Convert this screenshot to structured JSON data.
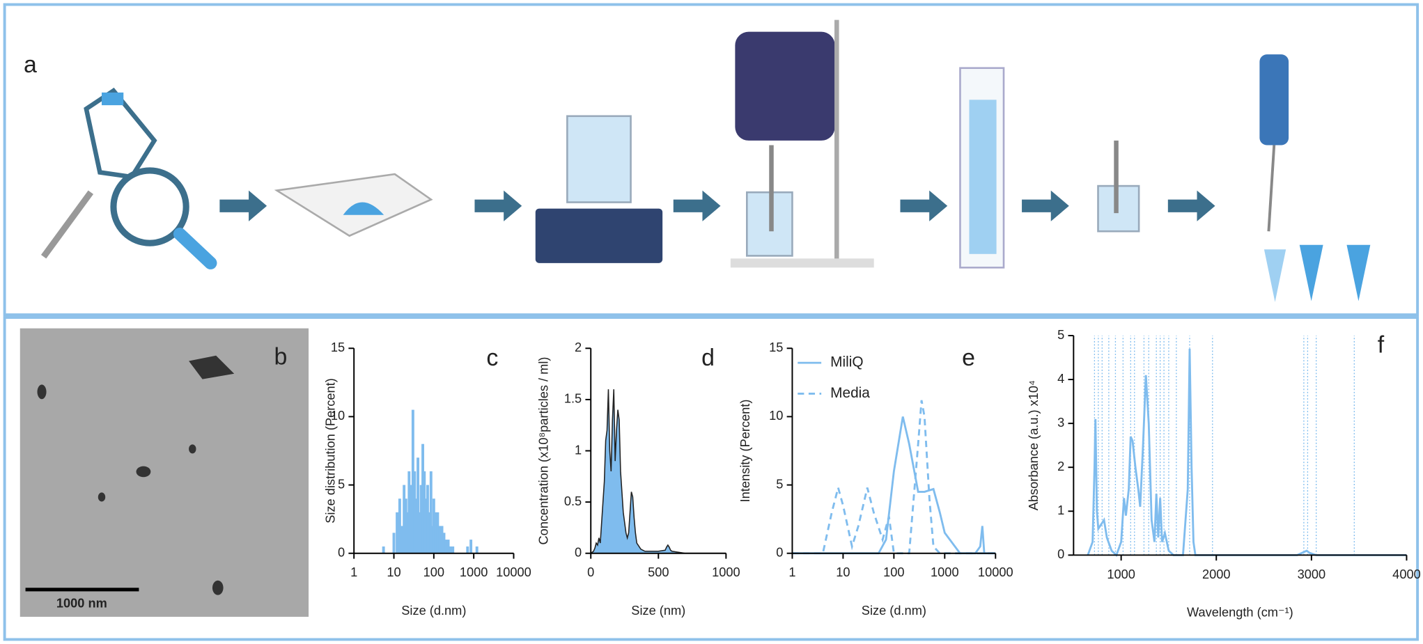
{
  "figure": {
    "panel_a": "a",
    "panel_b": "b",
    "scale_bar": "1000 nm"
  },
  "chart_data": [
    {
      "type": "bar",
      "panel": "c",
      "xscale": "log",
      "xlabel": "Size (d.nm)",
      "ylabel": "Size distribution (Percent)",
      "color": "#7fbcee",
      "xlim": [
        1,
        10000
      ],
      "xticks": [
        1,
        10,
        100,
        1000,
        10000
      ],
      "ylim": [
        0,
        15
      ],
      "yticks": [
        0,
        5,
        10,
        15
      ],
      "series": [
        {
          "x": [
            5.5,
            10,
            12,
            14,
            16,
            18,
            20,
            22,
            24,
            27,
            30,
            33,
            36,
            40,
            44,
            48,
            53,
            58,
            64,
            70,
            77,
            85,
            93,
            100,
            110,
            125,
            140,
            160,
            180,
            200,
            230,
            260,
            300,
            700,
            850,
            1200
          ],
          "values": [
            0.5,
            1.5,
            3,
            4,
            2,
            5,
            4,
            3,
            6,
            5,
            10.5,
            6,
            4,
            7,
            3,
            5,
            8,
            6,
            4,
            5,
            3,
            6,
            2,
            4,
            3,
            3,
            2,
            2,
            1.5,
            1,
            1,
            0.5,
            0.5,
            0.5,
            1,
            0.5
          ]
        }
      ]
    },
    {
      "type": "area",
      "panel": "d",
      "xlabel": "Size (nm)",
      "ylabel": "Concentration (x10⁸particles / ml)",
      "color": "#222222",
      "fill": "#7fbcee",
      "xlim": [
        0,
        1000
      ],
      "xticks": [
        0,
        500,
        1000
      ],
      "ylim": [
        0,
        2
      ],
      "yticks": [
        0,
        0.5,
        1,
        1.5,
        2
      ],
      "series": [
        {
          "x": [
            0,
            20,
            30,
            40,
            50,
            60,
            70,
            80,
            90,
            100,
            110,
            120,
            130,
            140,
            150,
            160,
            170,
            180,
            190,
            200,
            210,
            220,
            230,
            240,
            250,
            260,
            270,
            280,
            290,
            300,
            310,
            320,
            330,
            340,
            350,
            370,
            400,
            450,
            500,
            550,
            560,
            570,
            580,
            590,
            600,
            650,
            700,
            800,
            1000
          ],
          "values": [
            0,
            0.02,
            0.05,
            0.1,
            0.08,
            0.15,
            0.1,
            0.3,
            0.5,
            0.7,
            1.1,
            1.2,
            1.6,
            1.0,
            0.8,
            1.3,
            1.6,
            0.9,
            1.2,
            1.4,
            1.3,
            0.8,
            0.6,
            0.4,
            0.3,
            0.2,
            0.15,
            0.2,
            0.4,
            0.6,
            0.55,
            0.35,
            0.2,
            0.1,
            0.08,
            0.04,
            0.02,
            0.02,
            0.02,
            0.03,
            0.06,
            0.08,
            0.06,
            0.03,
            0.02,
            0.01,
            0,
            0,
            0
          ]
        }
      ]
    },
    {
      "type": "line",
      "panel": "e",
      "xscale": "log",
      "xlabel": "Size (d.nm)",
      "ylabel": "Intensity (Percent)",
      "legend": "upper left",
      "xlim": [
        1,
        10000
      ],
      "xticks": [
        1,
        10,
        100,
        1000,
        10000
      ],
      "ylim": [
        0,
        15
      ],
      "yticks": [
        0,
        5,
        10,
        15
      ],
      "series": [
        {
          "name": "MiliQ",
          "color": "#7fbcee",
          "dash": false,
          "x": [
            1,
            10,
            50,
            70,
            100,
            150,
            200,
            300,
            400,
            600,
            800,
            1000,
            2000,
            4000,
            5000,
            5500,
            6000,
            8000,
            10000
          ],
          "values": [
            0,
            0,
            0,
            1,
            6,
            10,
            8,
            4.5,
            4.5,
            4.7,
            3,
            1.5,
            0,
            0,
            0.5,
            2,
            0,
            0,
            0
          ]
        },
        {
          "name": "Media",
          "color": "#7fbcee",
          "dash": true,
          "x": [
            1,
            4,
            6,
            8,
            10,
            15,
            20,
            30,
            40,
            60,
            80,
            100,
            200,
            300,
            350,
            400,
            500,
            600,
            800,
            1000,
            10000
          ],
          "values": [
            0,
            0,
            3,
            4.8,
            3.5,
            0.5,
            2,
            4.8,
            3,
            1,
            2.7,
            0,
            0,
            8,
            11.2,
            10,
            4,
            0.5,
            0,
            0,
            0
          ]
        }
      ]
    },
    {
      "type": "line",
      "panel": "f",
      "xlabel": "Wavelength (cm⁻¹)",
      "ylabel": "Absorbance (a.u.) x10⁴",
      "xlim": [
        500,
        4000
      ],
      "xticks": [
        1000,
        2000,
        3000,
        4000
      ],
      "ylim": [
        0,
        5
      ],
      "yticks": [
        0,
        1,
        2,
        3,
        4,
        5
      ],
      "vlines": [
        720,
        760,
        800,
        870,
        940,
        1020,
        1100,
        1140,
        1240,
        1290,
        1370,
        1410,
        1450,
        1500,
        1580,
        1720,
        1960,
        2920,
        2960,
        3050,
        3450
      ],
      "series": [
        {
          "color": "#7fbcee",
          "dash": false,
          "x": [
            650,
            700,
            720,
            730,
            745,
            760,
            790,
            820,
            850,
            900,
            950,
            1000,
            1030,
            1050,
            1080,
            1100,
            1120,
            1150,
            1180,
            1200,
            1230,
            1260,
            1290,
            1320,
            1350,
            1370,
            1390,
            1410,
            1430,
            1460,
            1480,
            1500,
            1550,
            1650,
            1700,
            1720,
            1740,
            1760,
            1780,
            2000,
            2850,
            2900,
            2950,
            2980,
            3050,
            4000
          ],
          "values": [
            0,
            0.3,
            2,
            3.1,
            1,
            0.6,
            0.7,
            0.8,
            0.4,
            0.1,
            0,
            0.3,
            1.3,
            0.9,
            1.5,
            2.7,
            2.6,
            2,
            1.5,
            1.1,
            2.5,
            4.1,
            3,
            0.8,
            0.3,
            1.4,
            0.4,
            1.3,
            0.3,
            0.5,
            0.3,
            0.1,
            0,
            0,
            1.5,
            4.7,
            2,
            0.3,
            0,
            0,
            0,
            0.05,
            0.1,
            0.05,
            0,
            0
          ]
        }
      ]
    }
  ]
}
